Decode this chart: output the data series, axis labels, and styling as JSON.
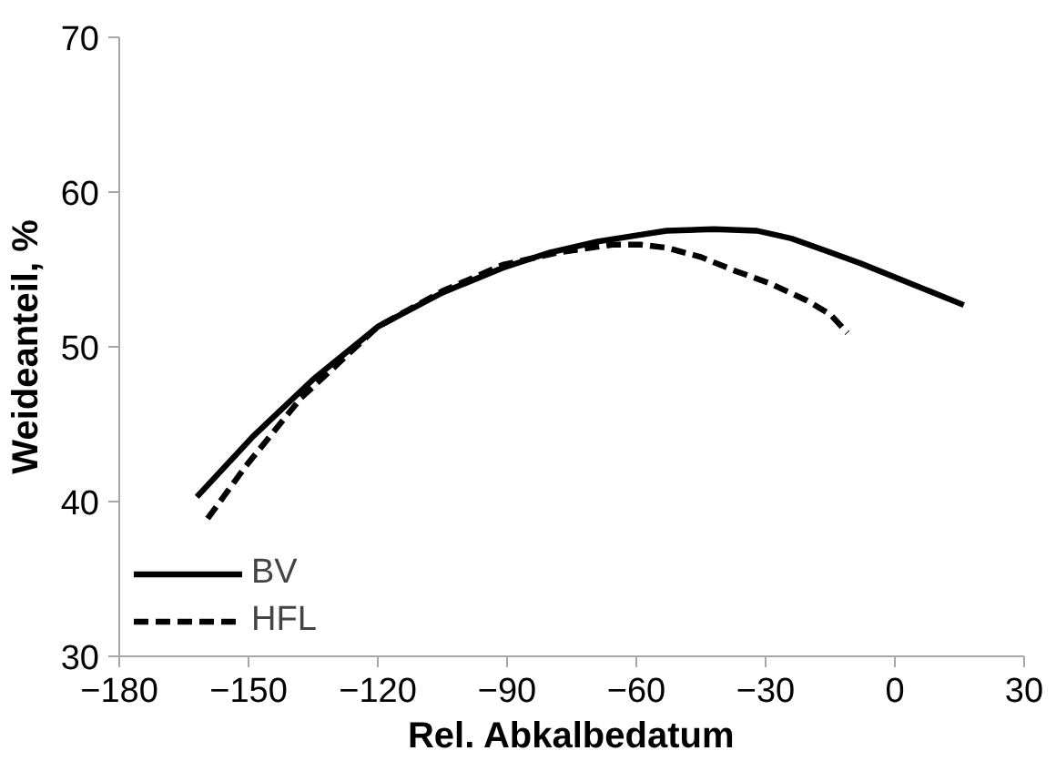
{
  "chart_data": {
    "type": "line",
    "xlabel": "Rel. Abkalbedatum",
    "ylabel": "Weideanteil, %",
    "xlim": [
      -180,
      30
    ],
    "ylim": [
      30,
      70
    ],
    "xticks": [
      -180,
      -150,
      -120,
      -90,
      -60,
      -30,
      0,
      30
    ],
    "yticks": [
      30,
      40,
      50,
      60,
      70
    ],
    "grid": false,
    "legend": "bottom left",
    "marker": "none",
    "series": [
      {
        "name": "BV",
        "color": "#000000",
        "line_style": "solid",
        "x": [
          -162,
          -149,
          -135,
          -120,
          -105,
          -91,
          -80,
          -69,
          -60,
          -53,
          -42,
          -32,
          -24,
          -16,
          -8,
          0,
          8,
          16
        ],
        "values": [
          40.3,
          44.2,
          47.9,
          51.3,
          53.5,
          55.1,
          56.1,
          56.8,
          57.2,
          57.5,
          57.6,
          57.5,
          57.0,
          56.2,
          55.4,
          54.5,
          53.6,
          52.7
        ]
      },
      {
        "name": "HFL",
        "color": "#000000",
        "line_style": "dashed",
        "x": [
          -159.5,
          -150.6,
          -137.8,
          -120,
          -105,
          -91,
          -78,
          -65.5,
          -59,
          -53,
          -45,
          -37,
          -29,
          -20.5,
          -15,
          -11
        ],
        "values": [
          38.9,
          42.3,
          46.7,
          51.3,
          53.6,
          55.3,
          56.1,
          56.6,
          56.6,
          56.4,
          55.8,
          54.9,
          54.1,
          53.0,
          52.1,
          50.9
        ]
      }
    ]
  }
}
